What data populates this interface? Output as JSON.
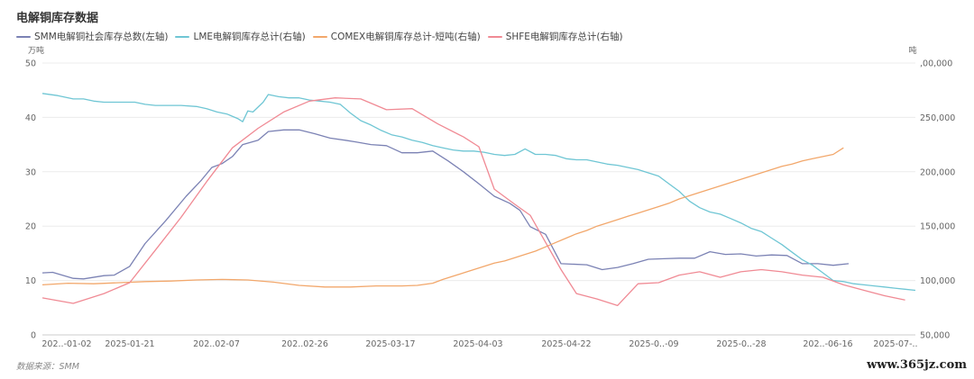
{
  "page": {
    "title": "电解铜库存数据",
    "source": "数据来源：SMM",
    "watermark": "www.365jz.com"
  },
  "chart_data": {
    "type": "line",
    "title": "电解铜库存数据",
    "left_axis": {
      "unit": "万吨",
      "range": [
        0,
        50
      ],
      "ticks": [
        0,
        10,
        20,
        30,
        40,
        50
      ]
    },
    "right_axis": {
      "unit": "吨",
      "range": [
        50000,
        300000
      ],
      "ticks": [
        "50,000",
        "100,000",
        "150,000",
        "200,000",
        "250,000",
        ",00,000"
      ]
    },
    "x_tick_labels": [
      "202..-01-02",
      "2025-01-21",
      "202..02-07",
      "202..02-26",
      "2025-03-17",
      "2025-04-03",
      "2025-04-22",
      "2025-0..-09",
      "2025-0..-28",
      "202..-06-16",
      "2025-07-.."
    ],
    "grid": "horizontal",
    "legend_position": "top-left",
    "series": [
      {
        "name": "SMM电解铜社会库存总数(左轴)",
        "axis": "left",
        "color": "#7b82b4",
        "points": [
          [
            0,
            11.4
          ],
          [
            2,
            11.5
          ],
          [
            6,
            10.4
          ],
          [
            8,
            10.3
          ],
          [
            12,
            10.9
          ],
          [
            14,
            11.0
          ],
          [
            17,
            12.6
          ],
          [
            20,
            16.8
          ],
          [
            24,
            21.0
          ],
          [
            28,
            25.5
          ],
          [
            31,
            28.5
          ],
          [
            33,
            30.8
          ],
          [
            35,
            31.5
          ],
          [
            37,
            32.8
          ],
          [
            39,
            35.0
          ],
          [
            42,
            35.8
          ],
          [
            44,
            37.4
          ],
          [
            47,
            37.7
          ],
          [
            50,
            37.7
          ],
          [
            53,
            37.0
          ],
          [
            56,
            36.2
          ],
          [
            59,
            35.8
          ],
          [
            61,
            35.5
          ],
          [
            64,
            35.0
          ],
          [
            67,
            34.8
          ],
          [
            70,
            33.5
          ],
          [
            73,
            33.5
          ],
          [
            76,
            33.8
          ],
          [
            79,
            32.0
          ],
          [
            82,
            30.0
          ],
          [
            85,
            27.8
          ],
          [
            88,
            25.5
          ],
          [
            91,
            24.2
          ],
          [
            93,
            22.9
          ],
          [
            95,
            19.9
          ],
          [
            98,
            18.5
          ],
          [
            101,
            13.1
          ],
          [
            106,
            12.9
          ],
          [
            109,
            12.0
          ],
          [
            112,
            12.4
          ],
          [
            115,
            13.1
          ],
          [
            118,
            13.9
          ],
          [
            121,
            14.0
          ],
          [
            124,
            14.1
          ],
          [
            127,
            14.1
          ],
          [
            130,
            15.3
          ],
          [
            133,
            14.8
          ],
          [
            136,
            14.9
          ],
          [
            139,
            14.5
          ],
          [
            142,
            14.7
          ],
          [
            145,
            14.6
          ],
          [
            148,
            13.1
          ],
          [
            151,
            13.1
          ],
          [
            154,
            12.8
          ],
          [
            157,
            13.1
          ]
        ]
      },
      {
        "name": "LME电解铜库存总计(右轴)",
        "axis": "right",
        "color": "#6fc6d4",
        "points": [
          [
            0,
            272000
          ],
          [
            3,
            270000
          ],
          [
            6,
            267000
          ],
          [
            8,
            267000
          ],
          [
            10,
            265000
          ],
          [
            12,
            264000
          ],
          [
            15,
            264000
          ],
          [
            18,
            264000
          ],
          [
            20,
            262000
          ],
          [
            22,
            261000
          ],
          [
            24,
            261000
          ],
          [
            27,
            261000
          ],
          [
            30,
            260000
          ],
          [
            32,
            258000
          ],
          [
            34,
            255000
          ],
          [
            36,
            253000
          ],
          [
            38,
            249000
          ],
          [
            39,
            246000
          ],
          [
            40,
            256000
          ],
          [
            41,
            255000
          ],
          [
            43,
            264000
          ],
          [
            44,
            271000
          ],
          [
            46,
            269000
          ],
          [
            48,
            268000
          ],
          [
            50,
            268000
          ],
          [
            52,
            266000
          ],
          [
            54,
            265000
          ],
          [
            56,
            264000
          ],
          [
            58,
            262000
          ],
          [
            60,
            254000
          ],
          [
            62,
            247000
          ],
          [
            64,
            243000
          ],
          [
            66,
            238000
          ],
          [
            68,
            234000
          ],
          [
            70,
            232000
          ],
          [
            72,
            229000
          ],
          [
            74,
            227000
          ],
          [
            76,
            224000
          ],
          [
            78,
            222000
          ],
          [
            80,
            220000
          ],
          [
            82,
            219000
          ],
          [
            84,
            219000
          ],
          [
            86,
            218000
          ],
          [
            88,
            216000
          ],
          [
            90,
            215000
          ],
          [
            92,
            216000
          ],
          [
            94,
            221000
          ],
          [
            96,
            216000
          ],
          [
            98,
            216000
          ],
          [
            100,
            215000
          ],
          [
            102,
            212000
          ],
          [
            104,
            211000
          ],
          [
            106,
            211000
          ],
          [
            108,
            209000
          ],
          [
            110,
            207000
          ],
          [
            112,
            206000
          ],
          [
            114,
            204000
          ],
          [
            116,
            202000
          ],
          [
            118,
            199000
          ],
          [
            120,
            196000
          ],
          [
            122,
            189000
          ],
          [
            124,
            182000
          ],
          [
            126,
            173000
          ],
          [
            128,
            167000
          ],
          [
            130,
            163000
          ],
          [
            132,
            161000
          ],
          [
            134,
            157000
          ],
          [
            136,
            153000
          ],
          [
            138,
            148000
          ],
          [
            140,
            145000
          ],
          [
            142,
            139000
          ],
          [
            144,
            133000
          ],
          [
            146,
            126000
          ],
          [
            148,
            119000
          ],
          [
            150,
            114000
          ],
          [
            152,
            107000
          ],
          [
            154,
            100000
          ],
          [
            156,
            99000
          ],
          [
            158,
            97000
          ],
          [
            160,
            96000
          ],
          [
            162,
            95000
          ],
          [
            164,
            94000
          ],
          [
            166,
            93000
          ],
          [
            168,
            92000
          ],
          [
            170,
            91000
          ]
        ]
      },
      {
        "name": "COMEX电解铜库存总计-短吨(右轴)",
        "axis": "right",
        "color": "#f2a76b",
        "points": [
          [
            0,
            96000
          ],
          [
            5,
            97500
          ],
          [
            10,
            97000
          ],
          [
            15,
            98000
          ],
          [
            20,
            99000
          ],
          [
            25,
            99500
          ],
          [
            30,
            100500
          ],
          [
            35,
            101000
          ],
          [
            40,
            100500
          ],
          [
            45,
            98500
          ],
          [
            50,
            95500
          ],
          [
            55,
            94000
          ],
          [
            60,
            94000
          ],
          [
            65,
            95000
          ],
          [
            70,
            95000
          ],
          [
            73,
            95500
          ],
          [
            76,
            97500
          ],
          [
            78,
            101000
          ],
          [
            80,
            104000
          ],
          [
            82,
            107000
          ],
          [
            84,
            110000
          ],
          [
            86,
            113000
          ],
          [
            88,
            116000
          ],
          [
            90,
            118000
          ],
          [
            92,
            121000
          ],
          [
            94,
            124000
          ],
          [
            96,
            127000
          ],
          [
            98,
            131000
          ],
          [
            100,
            135000
          ],
          [
            102,
            139000
          ],
          [
            104,
            143000
          ],
          [
            106,
            146000
          ],
          [
            108,
            150000
          ],
          [
            110,
            153000
          ],
          [
            112,
            156000
          ],
          [
            114,
            159000
          ],
          [
            116,
            162000
          ],
          [
            118,
            165000
          ],
          [
            120,
            168000
          ],
          [
            122,
            171000
          ],
          [
            124,
            175000
          ],
          [
            126,
            178000
          ],
          [
            128,
            181000
          ],
          [
            130,
            184000
          ],
          [
            132,
            187000
          ],
          [
            134,
            190000
          ],
          [
            136,
            193000
          ],
          [
            138,
            196000
          ],
          [
            140,
            199000
          ],
          [
            142,
            202000
          ],
          [
            144,
            205000
          ],
          [
            146,
            207000
          ],
          [
            148,
            210000
          ],
          [
            150,
            212000
          ],
          [
            152,
            214000
          ],
          [
            154,
            216000
          ],
          [
            156,
            222000
          ]
        ]
      },
      {
        "name": "SHFE电解铜库存总计(右轴)",
        "axis": "right",
        "color": "#f08a94",
        "points": [
          [
            0,
            84000
          ],
          [
            6,
            79000
          ],
          [
            12,
            88000
          ],
          [
            17,
            98000
          ],
          [
            22,
            128000
          ],
          [
            27,
            158000
          ],
          [
            32,
            191000
          ],
          [
            37,
            222000
          ],
          [
            42,
            240000
          ],
          [
            47,
            255000
          ],
          [
            52,
            265000
          ],
          [
            57,
            268000
          ],
          [
            62,
            267000
          ],
          [
            67,
            257000
          ],
          [
            72,
            258000
          ],
          [
            77,
            244000
          ],
          [
            82,
            232000
          ],
          [
            85,
            223000
          ],
          [
            88,
            184000
          ],
          [
            92,
            170000
          ],
          [
            95,
            160000
          ],
          [
            98,
            135000
          ],
          [
            101,
            110000
          ],
          [
            104,
            88000
          ],
          [
            108,
            83000
          ],
          [
            112,
            77000
          ],
          [
            116,
            97000
          ],
          [
            120,
            98000
          ],
          [
            124,
            105000
          ],
          [
            128,
            108000
          ],
          [
            132,
            103000
          ],
          [
            136,
            108000
          ],
          [
            140,
            110000
          ],
          [
            144,
            108000
          ],
          [
            148,
            105000
          ],
          [
            152,
            103000
          ],
          [
            156,
            96000
          ],
          [
            160,
            91000
          ],
          [
            164,
            86000
          ],
          [
            168,
            82000
          ]
        ]
      }
    ]
  }
}
